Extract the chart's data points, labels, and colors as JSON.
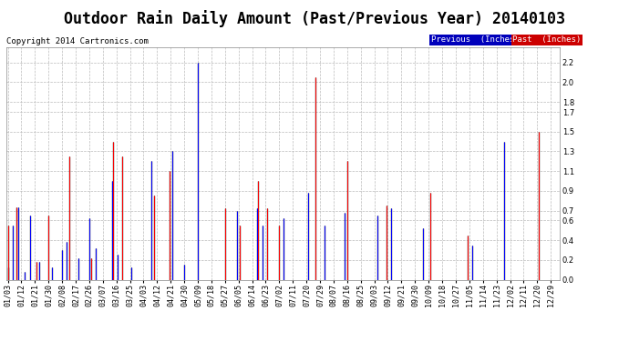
{
  "title": "Outdoor Rain Daily Amount (Past/Previous Year) 20140103",
  "copyright": "Copyright 2014 Cartronics.com",
  "ylim": [
    0.0,
    2.35
  ],
  "yticks": [
    0.0,
    0.2,
    0.4,
    0.6,
    0.7,
    0.9,
    1.1,
    1.3,
    1.5,
    1.7,
    1.8,
    2.0,
    2.2
  ],
  "legend_previous_color": "#0000ff",
  "legend_past_color": "#ff0000",
  "legend_previous_bg": "#0000bb",
  "legend_past_bg": "#cc0000",
  "grid_color": "#bbbbbb",
  "background_color": "#ffffff",
  "title_fontsize": 12,
  "copyright_fontsize": 6.5,
  "tick_label_fontsize": 6,
  "num_days": 366,
  "x_tick_labels": [
    "01/03",
    "01/12",
    "01/21",
    "01/30",
    "02/08",
    "02/17",
    "02/26",
    "03/07",
    "03/16",
    "03/25",
    "04/03",
    "04/12",
    "04/21",
    "04/30",
    "05/09",
    "05/18",
    "05/27",
    "06/05",
    "06/14",
    "06/23",
    "07/02",
    "07/11",
    "07/20",
    "07/29",
    "08/07",
    "08/16",
    "08/25",
    "09/03",
    "09/12",
    "09/21",
    "09/30",
    "10/09",
    "10/18",
    "10/27",
    "11/05",
    "11/14",
    "11/23",
    "12/02",
    "12/11",
    "12/20",
    "12/29"
  ],
  "x_tick_positions": [
    0,
    9,
    18,
    27,
    36,
    45,
    54,
    63,
    72,
    81,
    90,
    99,
    108,
    117,
    126,
    135,
    144,
    153,
    162,
    171,
    180,
    189,
    198,
    207,
    216,
    225,
    234,
    243,
    252,
    261,
    270,
    279,
    288,
    297,
    306,
    315,
    324,
    333,
    342,
    351,
    360
  ],
  "previous_year_rain": [
    0.12,
    0.0,
    0.0,
    0.55,
    0.0,
    0.0,
    0.0,
    0.73,
    0.0,
    0.0,
    0.0,
    0.08,
    0.0,
    0.0,
    0.0,
    0.65,
    0.0,
    0.0,
    0.0,
    0.0,
    0.0,
    0.18,
    0.0,
    0.0,
    0.0,
    0.0,
    0.0,
    0.0,
    0.0,
    0.12,
    0.0,
    0.0,
    0.0,
    0.0,
    0.0,
    0.0,
    0.3,
    0.0,
    0.0,
    0.38,
    0.0,
    0.0,
    0.0,
    0.0,
    0.0,
    0.0,
    0.0,
    0.22,
    0.0,
    0.0,
    0.0,
    0.0,
    0.0,
    0.0,
    0.62,
    0.0,
    0.0,
    0.0,
    0.32,
    0.0,
    0.0,
    0.0,
    0.0,
    0.0,
    0.0,
    0.0,
    0.0,
    0.0,
    0.0,
    1.0,
    0.0,
    0.0,
    0.0,
    0.25,
    0.0,
    0.0,
    0.0,
    0.0,
    0.0,
    0.0,
    0.0,
    0.0,
    0.12,
    0.0,
    0.0,
    0.0,
    0.0,
    0.0,
    0.0,
    0.0,
    0.0,
    0.0,
    0.0,
    0.0,
    0.0,
    1.2,
    0.0,
    0.0,
    0.0,
    0.0,
    0.0,
    0.0,
    0.0,
    0.0,
    0.0,
    0.0,
    0.0,
    0.0,
    0.0,
    1.3,
    0.0,
    0.0,
    0.0,
    0.0,
    0.0,
    0.0,
    0.0,
    0.15,
    0.0,
    0.0,
    0.0,
    0.0,
    0.0,
    0.0,
    0.0,
    0.0,
    2.2,
    0.0,
    0.0,
    0.0,
    0.0,
    0.0,
    0.0,
    0.0,
    0.0,
    0.0,
    0.0,
    0.0,
    0.0,
    0.0,
    0.0,
    0.0,
    0.0,
    0.0,
    0.0,
    0.0,
    0.0,
    0.0,
    0.0,
    0.0,
    0.0,
    0.0,
    0.7,
    0.0,
    0.0,
    0.0,
    0.0,
    0.0,
    0.0,
    0.0,
    0.0,
    0.0,
    0.0,
    0.0,
    0.0,
    0.72,
    0.0,
    0.0,
    0.0,
    0.55,
    0.0,
    0.0,
    0.0,
    0.0,
    0.0,
    0.0,
    0.0,
    0.0,
    0.0,
    0.0,
    0.0,
    0.0,
    0.0,
    0.62,
    0.0,
    0.0,
    0.0,
    0.0,
    0.0,
    0.0,
    0.0,
    0.0,
    0.0,
    0.0,
    0.0,
    0.0,
    0.0,
    0.0,
    0.0,
    0.88,
    0.0,
    0.0,
    0.0,
    0.0,
    0.0,
    0.0,
    0.0,
    0.0,
    0.0,
    0.0,
    0.55,
    0.0,
    0.0,
    0.0,
    0.0,
    0.0,
    0.0,
    0.0,
    0.0,
    0.0,
    0.0,
    0.0,
    0.0,
    0.68,
    0.0,
    0.0,
    0.0,
    0.0,
    0.0,
    0.0,
    0.0,
    0.0,
    0.0,
    0.0,
    0.0,
    0.0,
    0.0,
    0.0,
    0.0,
    0.0,
    0.0,
    0.0,
    0.0,
    0.0,
    0.0,
    0.65,
    0.0,
    0.0,
    0.0,
    0.0,
    0.0,
    0.0,
    0.0,
    0.0,
    0.72,
    0.0,
    0.0,
    0.0,
    0.0,
    0.0,
    0.0,
    0.0,
    0.0,
    0.0,
    0.0,
    0.0,
    0.0,
    0.0,
    0.0,
    0.0,
    0.0,
    0.0,
    0.0,
    0.0,
    0.0,
    0.52,
    0.0,
    0.0,
    0.0,
    0.0,
    0.0,
    0.0,
    0.0,
    0.0,
    0.0,
    0.0,
    0.0,
    0.0,
    0.0,
    0.0,
    0.0,
    0.0,
    0.0,
    0.0,
    0.0,
    0.0,
    0.0,
    0.0,
    0.0,
    0.0,
    0.0,
    0.0,
    0.0,
    0.0,
    0.0,
    0.0,
    0.0,
    0.0,
    0.35,
    0.0,
    0.0,
    0.0,
    0.0,
    0.0,
    0.0,
    0.0,
    0.0,
    0.0,
    0.0,
    0.0,
    0.0,
    0.0,
    0.0,
    0.0,
    0.0,
    0.0,
    0.0,
    0.0,
    0.0,
    1.4,
    0.0,
    0.0,
    0.0,
    0.0,
    0.0,
    0.0,
    0.0,
    0.0,
    0.0,
    0.0,
    0.0,
    0.0,
    0.0,
    0.0,
    0.0,
    0.0,
    0.0,
    0.0,
    0.0,
    0.0,
    0.0,
    0.0,
    0.0,
    0.0,
    0.0,
    0.0,
    0.0,
    0.0,
    0.0,
    0.0,
    0.0,
    0.0,
    0.0,
    0.0,
    0.0,
    0.0
  ],
  "past_year_rain": [
    0.55,
    0.0,
    0.0,
    0.0,
    0.0,
    0.0,
    0.73,
    0.0,
    0.0,
    0.0,
    0.0,
    0.0,
    0.0,
    0.0,
    0.0,
    0.0,
    0.0,
    0.0,
    0.0,
    0.18,
    0.0,
    0.0,
    0.0,
    0.0,
    0.0,
    0.0,
    0.0,
    0.65,
    0.0,
    0.0,
    0.0,
    0.0,
    0.0,
    0.0,
    0.0,
    0.0,
    0.0,
    0.0,
    0.0,
    0.0,
    0.0,
    1.25,
    0.0,
    0.0,
    0.0,
    0.0,
    0.0,
    0.0,
    0.0,
    0.0,
    0.0,
    0.0,
    0.0,
    0.0,
    0.0,
    0.22,
    0.0,
    0.0,
    0.0,
    0.0,
    0.0,
    0.0,
    0.0,
    0.0,
    0.0,
    0.0,
    0.0,
    0.0,
    0.0,
    0.0,
    1.4,
    0.0,
    0.0,
    0.0,
    0.0,
    0.0,
    1.25,
    0.0,
    0.0,
    0.0,
    0.0,
    0.0,
    0.0,
    0.0,
    0.0,
    0.0,
    0.0,
    0.0,
    0.0,
    0.0,
    0.0,
    0.0,
    0.0,
    0.0,
    0.0,
    0.0,
    0.0,
    0.85,
    0.0,
    0.0,
    0.0,
    0.0,
    0.0,
    0.0,
    0.0,
    0.0,
    0.0,
    1.1,
    0.0,
    0.0,
    0.0,
    0.0,
    0.0,
    0.0,
    0.0,
    0.0,
    0.0,
    0.0,
    0.0,
    0.0,
    0.0,
    0.0,
    0.0,
    0.0,
    0.0,
    0.0,
    0.0,
    0.0,
    0.0,
    0.0,
    0.0,
    0.0,
    0.0,
    0.0,
    0.0,
    0.0,
    0.0,
    0.0,
    0.0,
    0.0,
    0.0,
    0.0,
    0.0,
    0.0,
    0.72,
    0.0,
    0.0,
    0.0,
    0.0,
    0.0,
    0.0,
    0.0,
    0.0,
    0.0,
    0.55,
    0.0,
    0.0,
    0.0,
    0.0,
    0.0,
    0.0,
    0.0,
    0.0,
    0.0,
    0.0,
    0.0,
    1.0,
    0.0,
    0.0,
    0.0,
    0.0,
    0.0,
    0.72,
    0.0,
    0.0,
    0.0,
    0.0,
    0.0,
    0.0,
    0.0,
    0.55,
    0.0,
    0.0,
    0.0,
    0.0,
    0.0,
    0.0,
    0.0,
    0.0,
    0.0,
    0.0,
    0.0,
    0.0,
    0.0,
    0.0,
    0.0,
    0.0,
    0.0,
    0.0,
    0.0,
    0.0,
    0.0,
    0.0,
    0.0,
    2.05,
    0.0,
    0.0,
    0.0,
    0.0,
    0.0,
    0.0,
    0.0,
    0.0,
    0.0,
    0.0,
    0.0,
    0.0,
    0.0,
    0.0,
    0.0,
    0.0,
    0.0,
    0.0,
    0.0,
    0.0,
    1.2,
    0.0,
    0.0,
    0.0,
    0.0,
    0.0,
    0.0,
    0.0,
    0.0,
    0.0,
    0.0,
    0.0,
    0.0,
    0.0,
    0.0,
    0.0,
    0.0,
    0.0,
    0.0,
    0.0,
    0.0,
    0.0,
    0.0,
    0.0,
    0.0,
    0.0,
    0.75,
    0.0,
    0.0,
    0.0,
    0.0,
    0.0,
    0.0,
    0.0,
    0.0,
    0.0,
    0.0,
    0.0,
    0.0,
    0.0,
    0.0,
    0.0,
    0.0,
    0.0,
    0.0,
    0.0,
    0.0,
    0.0,
    0.0,
    0.0,
    0.0,
    0.0,
    0.0,
    0.0,
    0.0,
    0.88,
    0.0,
    0.0,
    0.0,
    0.0,
    0.0,
    0.0,
    0.0,
    0.0,
    0.0,
    0.0,
    0.0,
    0.0,
    0.0,
    0.0,
    0.0,
    0.0,
    0.0,
    0.0,
    0.0,
    0.0,
    0.0,
    0.0,
    0.0,
    0.0,
    0.45,
    0.0,
    0.0,
    0.0,
    0.0,
    0.0,
    0.0,
    0.0,
    0.0,
    0.0,
    0.0,
    0.0,
    0.0,
    0.0,
    0.0,
    0.0,
    0.0,
    0.0,
    0.0,
    0.0,
    0.0,
    0.0,
    0.0,
    0.0,
    0.0,
    0.0,
    0.0,
    0.0,
    0.0,
    0.0,
    0.0,
    0.0,
    0.0,
    0.0,
    0.0,
    0.0,
    0.0,
    0.0,
    0.0,
    0.0,
    0.0,
    0.0,
    0.0,
    0.0,
    0.0,
    0.0,
    0.0,
    1.5,
    0.0,
    0.0,
    0.0,
    0.0,
    0.0,
    0.0,
    0.0,
    0.0,
    0.0,
    0.0,
    0.0,
    0.0,
    0.0
  ]
}
